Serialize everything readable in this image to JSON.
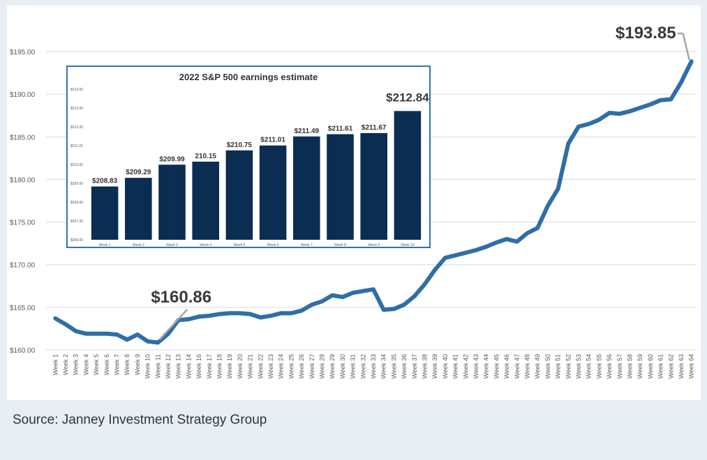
{
  "source": "Source: Janney Investment Strategy Group",
  "colors": {
    "main_line": "#2f6ea8",
    "inset_bar": "#0c2d52",
    "inset_border": "#2f74b5",
    "grid": "#d9d9d9",
    "callout_line": "#a6a6a6",
    "axis_text": "#595959",
    "annotation_text": "#3a3a3a"
  },
  "chart_data": [
    {
      "type": "line",
      "title": "",
      "xlabel": "",
      "ylabel": "",
      "ylim": [
        160,
        195
      ],
      "y_ticks": [
        "$160.00",
        "$165.00",
        "$170.00",
        "$175.00",
        "$180.00",
        "$185.00",
        "$190.00",
        "$195.00"
      ],
      "y_tick_values": [
        160,
        165,
        170,
        175,
        180,
        185,
        190,
        195
      ],
      "grid": true,
      "categories": [
        "Week 1",
        "Week 2",
        "Week 3",
        "Week 4",
        "Week 5",
        "Week 6",
        "Week 7",
        "Week 8",
        "Week 9",
        "Week 10",
        "Week 11",
        "Week 12",
        "Week 13",
        "Week 14",
        "Week 16",
        "Week 17",
        "Week 18",
        "Week 19",
        "Week 20",
        "Week 21",
        "Week 22",
        "Week 23",
        "Week 24",
        "Week 25",
        "Week 26",
        "Week 27",
        "Week 28",
        "Week 29",
        "Week 30",
        "Week 31",
        "Week 32",
        "Week 33",
        "Week 34",
        "Week 35",
        "Week 36",
        "Week 37",
        "Week 38",
        "Week 39",
        "Week 40",
        "Week 41",
        "Week 42",
        "Week 43",
        "Week 44",
        "Week 45",
        "Week 46",
        "Week 47",
        "Week 48",
        "Week 49",
        "Week 50",
        "Week 51",
        "Week 52",
        "Week 53",
        "Week 54",
        "Week 55",
        "Week 56",
        "Week 57",
        "Week 58",
        "Week 59",
        "Week 60",
        "Week 61",
        "Week 62",
        "Week 63",
        "Week 64"
      ],
      "series": [
        {
          "name": "S&P 500 earnings estimate",
          "values": [
            163.7,
            163.0,
            162.2,
            161.9,
            161.9,
            161.9,
            161.8,
            161.2,
            161.8,
            161.0,
            160.86,
            161.9,
            163.5,
            163.6,
            163.9,
            164.0,
            164.2,
            164.3,
            164.3,
            164.2,
            163.8,
            164.0,
            164.3,
            164.3,
            164.6,
            165.3,
            165.7,
            166.4,
            166.2,
            166.7,
            166.9,
            167.1,
            164.7,
            164.8,
            165.3,
            166.3,
            167.7,
            169.4,
            170.8,
            171.1,
            171.4,
            171.7,
            172.1,
            172.6,
            173.0,
            172.7,
            173.7,
            174.3,
            176.9,
            178.9,
            184.2,
            186.2,
            186.5,
            187.0,
            187.8,
            187.7,
            188.0,
            188.4,
            188.8,
            189.3,
            189.4,
            191.4,
            193.85
          ]
        }
      ],
      "annotations": [
        {
          "label": "$160.86",
          "category": "Week 11"
        },
        {
          "label": "$193.85",
          "category": "Week 64"
        }
      ]
    },
    {
      "type": "bar",
      "title": "2022 S&P 500 earnings estimate",
      "categories": [
        "Week 1",
        "Week 2",
        "Week 3",
        "Week 4",
        "Week 5",
        "Week 6",
        "Week 7",
        "Week 8",
        "Week 9",
        "Week 10"
      ],
      "values": [
        208.83,
        209.29,
        209.99,
        210.15,
        210.75,
        211.01,
        211.49,
        211.61,
        211.67,
        212.84
      ],
      "labels": [
        "$208.83",
        "$209.29",
        "$209.99",
        "210.15",
        "$210.75",
        "$211.01",
        "$211.49",
        "$211.61",
        "$211.67",
        "$212.84"
      ],
      "ylim": [
        206,
        214
      ],
      "y_ticks": [
        "$206.00",
        "$207.00",
        "$208.00",
        "$209.00",
        "$210.00",
        "$211.00",
        "$212.00",
        "$213.00",
        "$214.00"
      ],
      "y_tick_values": [
        206,
        207,
        208,
        209,
        210,
        211,
        212,
        213,
        214
      ],
      "xlabel": "",
      "ylabel": ""
    }
  ]
}
